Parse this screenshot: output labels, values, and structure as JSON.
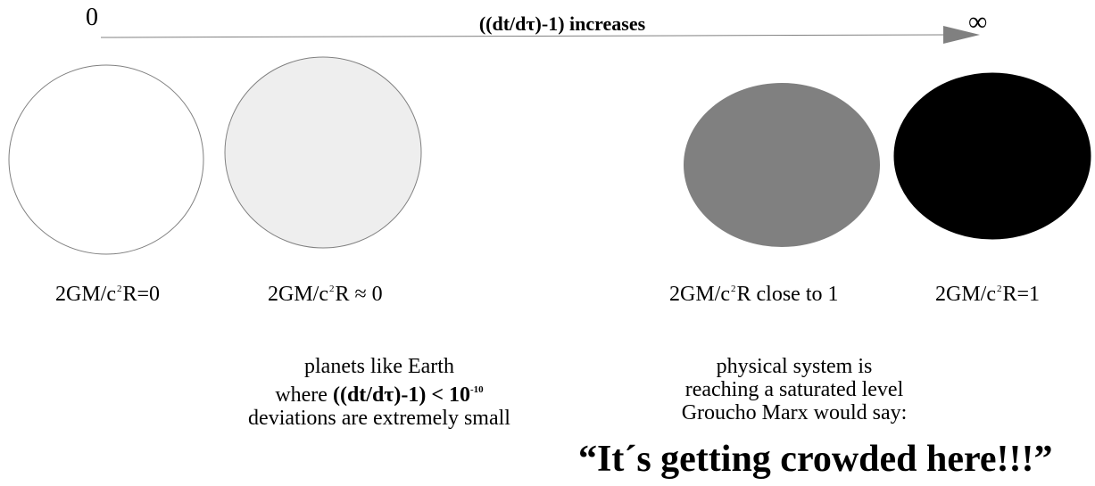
{
  "axis": {
    "start_label": "0",
    "end_label": "∞",
    "arrow_label": "((dt/dτ)-1) increases",
    "arrow_color": "#808080"
  },
  "circles": [
    {
      "name": "white-circle",
      "fill": "#ffffff",
      "stroke": "#808080"
    },
    {
      "name": "light-gray-circle",
      "fill": "#eeeeee",
      "stroke": "#808080"
    },
    {
      "name": "gray-circle",
      "fill": "#808080",
      "stroke": "none"
    },
    {
      "name": "black-circle",
      "fill": "#000000",
      "stroke": "#000000"
    }
  ],
  "formulas": [
    {
      "pre": "2GM/c",
      "sup": "2",
      "post": "R=0"
    },
    {
      "pre": "2GM/c",
      "sup": "2",
      "post": "R ≈ 0"
    },
    {
      "pre": "2GM/c",
      "sup": "2",
      "post": "R close to 1"
    },
    {
      "pre": "2GM/c",
      "sup": "2",
      "post": "R=1"
    }
  ],
  "left_note": {
    "line1": "planets like Earth",
    "line2_pre": "where ",
    "line2_bold": "((dt/dτ)-1) < 10",
    "line2_sup": "-10",
    "line3": "deviations are extremely small"
  },
  "right_note": {
    "line1": "physical system is",
    "line2": "reaching a saturated level",
    "line3": "Groucho Marx would say:"
  },
  "quote": "“It´s getting crowded here!!!”"
}
